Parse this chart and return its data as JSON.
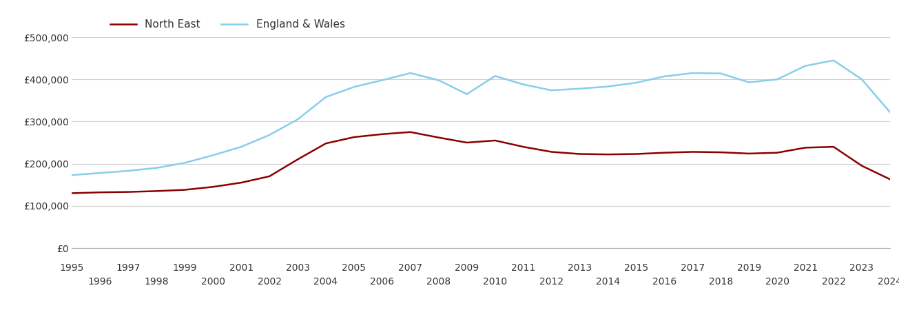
{
  "years": [
    1995,
    1996,
    1997,
    1998,
    1999,
    2000,
    2001,
    2002,
    2003,
    2004,
    2005,
    2006,
    2007,
    2008,
    2009,
    2010,
    2011,
    2012,
    2013,
    2014,
    2015,
    2016,
    2017,
    2018,
    2019,
    2020,
    2021,
    2022,
    2023,
    2024
  ],
  "north_east": [
    130000,
    132000,
    133000,
    135000,
    138000,
    145000,
    155000,
    170000,
    210000,
    248000,
    263000,
    270000,
    275000,
    262000,
    250000,
    255000,
    240000,
    228000,
    223000,
    222000,
    223000,
    226000,
    228000,
    227000,
    224000,
    226000,
    238000,
    240000,
    195000,
    163000
  ],
  "england_wales": [
    173000,
    178000,
    183000,
    190000,
    202000,
    220000,
    240000,
    268000,
    305000,
    358000,
    382000,
    398000,
    415000,
    398000,
    365000,
    408000,
    388000,
    374000,
    378000,
    383000,
    392000,
    407000,
    415000,
    414000,
    393000,
    400000,
    432000,
    445000,
    400000,
    322000
  ],
  "north_east_color": "#8B0000",
  "england_wales_color": "#87CEEB",
  "north_east_label": "North East",
  "england_wales_label": "England & Wales",
  "ylim": [
    0,
    500000
  ],
  "yticks": [
    0,
    100000,
    200000,
    300000,
    400000,
    500000
  ],
  "ytick_labels": [
    "£0",
    "£100,000",
    "£200,000",
    "£300,000",
    "£400,000",
    "£500,000"
  ],
  "background_color": "#ffffff",
  "grid_color": "#d0d0d0",
  "line_width": 1.8,
  "legend_fontsize": 11,
  "tick_fontsize": 10,
  "odd_years": [
    1995,
    1997,
    1999,
    2001,
    2003,
    2005,
    2007,
    2009,
    2011,
    2013,
    2015,
    2017,
    2019,
    2021,
    2023
  ],
  "even_years": [
    1996,
    1998,
    2000,
    2002,
    2004,
    2006,
    2008,
    2010,
    2012,
    2014,
    2016,
    2018,
    2020,
    2022,
    2024
  ]
}
